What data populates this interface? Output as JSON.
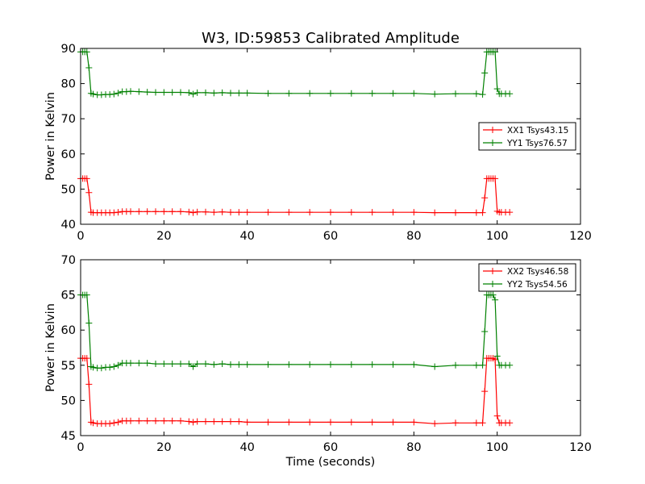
{
  "chart_data": [
    {
      "type": "line",
      "title": "W3, ID:59853 Calibrated Amplitude",
      "xlabel": "",
      "ylabel": "Power in Kelvin",
      "xlim": [
        0,
        120
      ],
      "ylim": [
        40,
        90
      ],
      "xticks": [
        "0",
        "20",
        "40",
        "60",
        "80",
        "100",
        "120"
      ],
      "yticks": [
        "40",
        "50",
        "60",
        "70",
        "80",
        "90"
      ],
      "grid": false,
      "legend_position": "center-right",
      "marker": "+",
      "series": [
        {
          "name": "XX1 Tsys43.15",
          "color": "#ff0000",
          "x": [
            0,
            0.5,
            1,
            1.5,
            2,
            2.5,
            3,
            4,
            5,
            6,
            7,
            8,
            9,
            10,
            11,
            12,
            14,
            16,
            18,
            20,
            22,
            24,
            26,
            27,
            28,
            30,
            32,
            34,
            36,
            38,
            40,
            45,
            50,
            55,
            60,
            65,
            70,
            75,
            80,
            85,
            90,
            95,
            96.5,
            97,
            97.5,
            98,
            98.5,
            99,
            99.5,
            100,
            100.5,
            101,
            102,
            103
          ],
          "y": [
            53,
            53,
            53,
            53,
            49,
            43.4,
            43.3,
            43.3,
            43.3,
            43.3,
            43.3,
            43.3,
            43.4,
            43.6,
            43.6,
            43.6,
            43.6,
            43.6,
            43.6,
            43.6,
            43.6,
            43.6,
            43.5,
            43.3,
            43.5,
            43.5,
            43.4,
            43.5,
            43.4,
            43.4,
            43.4,
            43.4,
            43.4,
            43.4,
            43.4,
            43.4,
            43.4,
            43.4,
            43.4,
            43.3,
            43.3,
            43.3,
            43.3,
            47.5,
            53,
            53,
            53,
            53,
            53,
            43.7,
            43.4,
            43.4,
            43.4,
            43.4
          ]
        },
        {
          "name": "YY1 Tsys76.57",
          "color": "#008000",
          "x": [
            0,
            0.5,
            1,
            1.5,
            2,
            2.5,
            3,
            4,
            5,
            6,
            7,
            8,
            9,
            10,
            11,
            12,
            14,
            16,
            18,
            20,
            22,
            24,
            26,
            27,
            28,
            30,
            32,
            34,
            36,
            38,
            40,
            45,
            50,
            55,
            60,
            65,
            70,
            75,
            80,
            85,
            90,
            95,
            96.5,
            97,
            97.5,
            98,
            98.5,
            99,
            99.5,
            100,
            100.5,
            101,
            102,
            103
          ],
          "y": [
            89,
            89,
            89,
            89,
            84.5,
            77.2,
            77,
            76.8,
            76.8,
            76.9,
            76.9,
            77,
            77.3,
            77.7,
            77.7,
            77.8,
            77.7,
            77.6,
            77.5,
            77.5,
            77.5,
            77.5,
            77.4,
            77,
            77.4,
            77.4,
            77.3,
            77.4,
            77.3,
            77.3,
            77.3,
            77.2,
            77.2,
            77.2,
            77.2,
            77.2,
            77.2,
            77.2,
            77.2,
            77,
            77.1,
            77.1,
            76.9,
            83,
            89,
            89,
            89,
            89,
            89,
            78.5,
            77.1,
            77.1,
            77.1,
            77.1
          ]
        }
      ]
    },
    {
      "type": "line",
      "title": "",
      "xlabel": "Time (seconds)",
      "ylabel": "Power in Kelvin",
      "xlim": [
        0,
        120
      ],
      "ylim": [
        45,
        70
      ],
      "xticks": [
        "0",
        "20",
        "40",
        "60",
        "80",
        "100",
        "120"
      ],
      "yticks": [
        "45",
        "50",
        "55",
        "60",
        "65",
        "70"
      ],
      "grid": false,
      "legend_position": "top-right",
      "marker": "+",
      "series": [
        {
          "name": "XX2 Tsys46.58",
          "color": "#ff0000",
          "x": [
            0,
            0.5,
            1,
            1.5,
            2,
            2.5,
            3,
            4,
            5,
            6,
            7,
            8,
            9,
            10,
            11,
            12,
            14,
            16,
            18,
            20,
            22,
            24,
            26,
            27,
            28,
            30,
            32,
            34,
            36,
            38,
            40,
            45,
            50,
            55,
            60,
            65,
            70,
            75,
            80,
            85,
            90,
            95,
            96.5,
            97,
            97.5,
            98,
            98.5,
            99,
            99.5,
            100,
            100.5,
            101,
            102,
            103
          ],
          "y": [
            56,
            56,
            56,
            56,
            52.3,
            46.9,
            46.8,
            46.7,
            46.7,
            46.7,
            46.7,
            46.8,
            46.9,
            47.1,
            47.1,
            47.1,
            47.1,
            47.1,
            47.1,
            47.1,
            47.1,
            47.1,
            47,
            46.9,
            47,
            47,
            47,
            47,
            47,
            47,
            46.9,
            46.9,
            46.9,
            46.9,
            46.9,
            46.9,
            46.9,
            46.9,
            46.9,
            46.7,
            46.8,
            46.8,
            46.8,
            51.3,
            56,
            56,
            56,
            56,
            55.8,
            47.8,
            46.8,
            46.8,
            46.8,
            46.8
          ]
        },
        {
          "name": "YY2 Tsys54.56",
          "color": "#008000",
          "x": [
            0,
            0.5,
            1,
            1.5,
            2,
            2.5,
            3,
            4,
            5,
            6,
            7,
            8,
            9,
            10,
            11,
            12,
            14,
            16,
            18,
            20,
            22,
            24,
            26,
            27,
            28,
            30,
            32,
            34,
            36,
            38,
            40,
            45,
            50,
            55,
            60,
            65,
            70,
            75,
            80,
            85,
            90,
            95,
            96.5,
            97,
            97.5,
            98,
            98.5,
            99,
            99.5,
            100,
            100.5,
            101,
            102,
            103
          ],
          "y": [
            65,
            65,
            65,
            65,
            61,
            54.8,
            54.7,
            54.6,
            54.6,
            54.7,
            54.7,
            54.8,
            55,
            55.3,
            55.3,
            55.3,
            55.3,
            55.3,
            55.2,
            55.2,
            55.2,
            55.2,
            55.2,
            54.8,
            55.2,
            55.2,
            55.1,
            55.2,
            55.1,
            55.1,
            55.1,
            55.1,
            55.1,
            55.1,
            55.1,
            55.1,
            55.1,
            55.1,
            55.1,
            54.8,
            55,
            55,
            55,
            59.8,
            65,
            65,
            65,
            65,
            64.3,
            56.3,
            55,
            55,
            55,
            55
          ]
        }
      ]
    }
  ]
}
